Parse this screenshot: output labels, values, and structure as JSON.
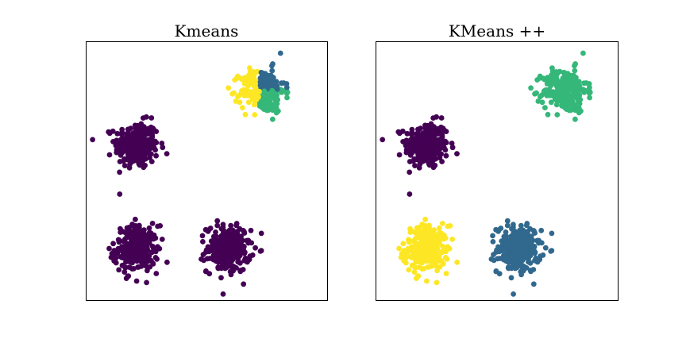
{
  "chart_data": [
    {
      "type": "scatter",
      "title": "Kmeans",
      "xlabel": "",
      "ylabel": "",
      "xlim": [
        0,
        10
      ],
      "ylim": [
        0,
        10
      ],
      "grid": false,
      "axes_ticks": false,
      "clusters": [
        {
          "cx": 2.1,
          "cy": 6.0,
          "sx": 0.45,
          "sy": 0.45,
          "n": 260,
          "color": "#440154"
        },
        {
          "cx": 2.1,
          "cy": 2.0,
          "sx": 0.45,
          "sy": 0.45,
          "n": 260,
          "color": "#440154"
        },
        {
          "cx": 5.9,
          "cy": 2.0,
          "sx": 0.45,
          "sy": 0.45,
          "n": 260,
          "color": "#440154"
        },
        {
          "cx": 7.3,
          "cy": 8.1,
          "sx": 0.45,
          "sy": 0.42,
          "n": 260,
          "color": "split"
        }
      ],
      "split_colors": {
        "left": "#fde725",
        "top_right": "#31688e",
        "bottom_right": "#35b779"
      }
    },
    {
      "type": "scatter",
      "title": "KMeans ++",
      "xlabel": "",
      "ylabel": "",
      "xlim": [
        0,
        10
      ],
      "ylim": [
        0,
        10
      ],
      "grid": false,
      "axes_ticks": false,
      "clusters": [
        {
          "cx": 2.1,
          "cy": 6.0,
          "sx": 0.45,
          "sy": 0.45,
          "n": 260,
          "color": "#440154"
        },
        {
          "cx": 2.1,
          "cy": 2.0,
          "sx": 0.45,
          "sy": 0.45,
          "n": 260,
          "color": "#fde725"
        },
        {
          "cx": 5.9,
          "cy": 2.0,
          "sx": 0.45,
          "sy": 0.45,
          "n": 260,
          "color": "#31688e"
        },
        {
          "cx": 7.8,
          "cy": 8.1,
          "sx": 0.45,
          "sy": 0.42,
          "n": 260,
          "color": "#35b779"
        }
      ]
    }
  ]
}
